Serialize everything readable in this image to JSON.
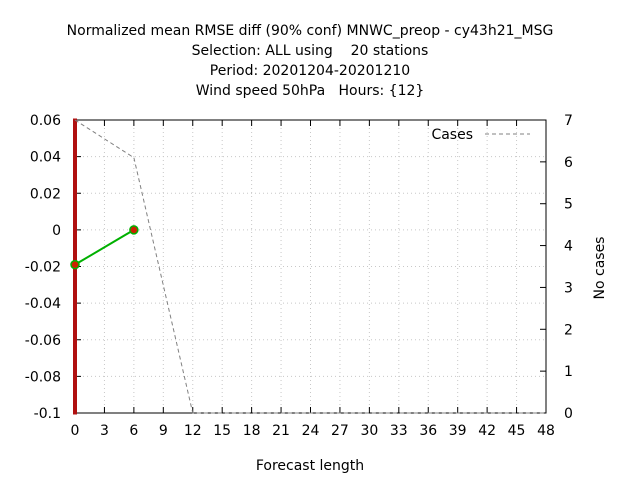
{
  "chart_data": {
    "type": "line",
    "title_lines": [
      "Normalized mean RMSE diff (90% conf) MNWC_preop - cy43h21_MSG",
      "Selection: ALL using    20 stations",
      "Period: 20201204-20201210",
      "Wind speed 50hPa   Hours: {12}"
    ],
    "xlabel": "Forecast length",
    "ylabel": "",
    "y2label": "No cases",
    "xlim": [
      0,
      48
    ],
    "ylim": [
      -0.1,
      0.06
    ],
    "y2lim": [
      0,
      7
    ],
    "x_ticks": [
      0,
      3,
      6,
      9,
      12,
      15,
      18,
      21,
      24,
      27,
      30,
      33,
      36,
      39,
      42,
      45,
      48
    ],
    "y_ticks": [
      0.06,
      0.04,
      0.02,
      0,
      -0.02,
      -0.04,
      -0.06,
      -0.08,
      -0.1
    ],
    "y_tick_labels": [
      "0.06",
      "0.04",
      "0.02",
      "0",
      "-0.02",
      "-0.04",
      "-0.06",
      "-0.08",
      "-0.1"
    ],
    "y2_ticks": [
      0,
      1,
      2,
      3,
      4,
      5,
      6,
      7
    ],
    "grid": true,
    "legend_position": "top-right",
    "series": [
      {
        "name": "Cases",
        "axis": "y2",
        "style": "dashed",
        "color": "#808080",
        "x": [
          0,
          6,
          12,
          48
        ],
        "values": [
          7,
          6.1,
          0,
          0
        ]
      },
      {
        "axis": "y1",
        "style": "solid",
        "color": "#00b000",
        "marker_color": "#cc2200",
        "x": [
          0,
          6
        ],
        "values": [
          -0.019,
          0.0
        ]
      }
    ],
    "confidence_intervals": {
      "color": "#b01010",
      "x": [
        0,
        6
      ],
      "low": [
        -0.1,
        0.0
      ],
      "high": [
        0.06,
        0.0
      ]
    }
  }
}
